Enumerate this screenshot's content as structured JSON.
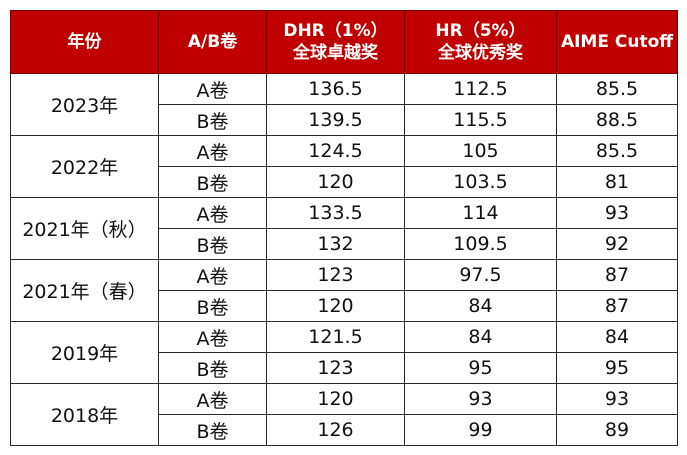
{
  "table": {
    "headers": [
      {
        "lines": [
          "年份"
        ]
      },
      {
        "lines": [
          "A/B卷"
        ]
      },
      {
        "lines": [
          "DHR（1%）",
          "全球卓越奖"
        ]
      },
      {
        "lines": [
          "HR（5%）",
          "全球优秀奖"
        ]
      },
      {
        "lines": [
          "AIME Cutoff"
        ]
      }
    ],
    "groups": [
      {
        "year": "2023年",
        "rows": [
          {
            "paper": "A卷",
            "dhr": "136.5",
            "hr": "112.5",
            "aime": "85.5"
          },
          {
            "paper": "B卷",
            "dhr": "139.5",
            "hr": "115.5",
            "aime": "88.5"
          }
        ]
      },
      {
        "year": "2022年",
        "rows": [
          {
            "paper": "A卷",
            "dhr": "124.5",
            "hr": "105",
            "aime": "85.5"
          },
          {
            "paper": "B卷",
            "dhr": "120",
            "hr": "103.5",
            "aime": "81"
          }
        ]
      },
      {
        "year": "2021年（秋）",
        "rows": [
          {
            "paper": "A卷",
            "dhr": "133.5",
            "hr": "114",
            "aime": "93"
          },
          {
            "paper": "B卷",
            "dhr": "132",
            "hr": "109.5",
            "aime": "92"
          }
        ]
      },
      {
        "year": "2021年（春）",
        "rows": [
          {
            "paper": "A卷",
            "dhr": "123",
            "hr": "97.5",
            "aime": "87"
          },
          {
            "paper": "B卷",
            "dhr": "120",
            "hr": "84",
            "aime": "87"
          }
        ]
      },
      {
        "year": "2019年",
        "rows": [
          {
            "paper": "A卷",
            "dhr": "121.5",
            "hr": "84",
            "aime": "84"
          },
          {
            "paper": "B卷",
            "dhr": "123",
            "hr": "95",
            "aime": "95"
          }
        ]
      },
      {
        "year": "2018年",
        "rows": [
          {
            "paper": "A卷",
            "dhr": "120",
            "hr": "93",
            "aime": "93"
          },
          {
            "paper": "B卷",
            "dhr": "126",
            "hr": "99",
            "aime": "89"
          }
        ]
      }
    ]
  }
}
